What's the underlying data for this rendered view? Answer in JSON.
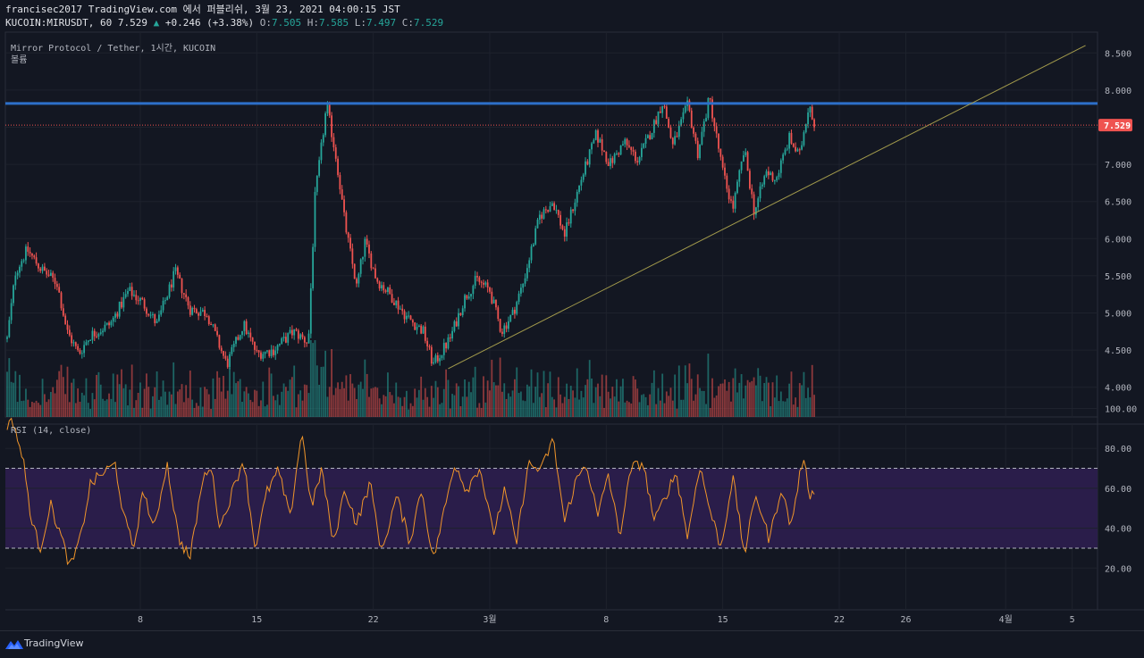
{
  "header": {
    "title_line": "francisec2017 TradingView.com 에서 퍼블리쉬, 3월 23, 2021 04:00:15 JST",
    "symbol_prefix": "KUCOIN:MIRUSDT, 60 7.529",
    "change_arrow": "▲",
    "change": "+0.246 (+3.38%)",
    "o_label": "O:",
    "o_value": "7.505",
    "h_label": "H:",
    "h_value": "7.585",
    "l_label": "L:",
    "l_value": "7.497",
    "c_label": "C:",
    "c_value": "7.529"
  },
  "legend": {
    "pair": "Mirror Protocol / Tether, 1시간, KUCOIN",
    "volume": "볼륨",
    "rsi": "RSI (14, close)"
  },
  "price_badge": "7.529",
  "footer": {
    "brand": "TradingView"
  },
  "colors": {
    "background": "#131722",
    "grid": "#1e222d",
    "up": "#26a69a",
    "down": "#ef5350",
    "resistance": "#2d6fc9",
    "trendline": "#a39b4c",
    "rsi_line": "#f0952a",
    "rsi_band": "#2a1d4a",
    "price_badge": "#ef5350"
  },
  "chart_data": [
    {
      "type": "candlestick",
      "price_axis_ticks": [
        "8.500",
        "8.000",
        "7.500",
        "7.000",
        "6.500",
        "6.000",
        "5.500",
        "5.000",
        "4.500",
        "4.000"
      ],
      "ylim": [
        3.6,
        8.78
      ],
      "time_axis_ticks": [
        {
          "label": "8",
          "day": 8
        },
        {
          "label": "15",
          "day": 15
        },
        {
          "label": "22",
          "day": 22
        },
        {
          "label": "3월",
          "day": 29
        },
        {
          "label": "8",
          "day": 36
        },
        {
          "label": "15",
          "day": 43
        },
        {
          "label": "22",
          "day": 50
        },
        {
          "label": "26",
          "day": 54
        },
        {
          "label": "4월",
          "day": 60
        },
        {
          "label": "5",
          "day": 64
        }
      ],
      "anchor_closes": [
        [
          0,
          4.65
        ],
        [
          0.5,
          5.55
        ],
        [
          1.2,
          5.85
        ],
        [
          2,
          5.6
        ],
        [
          3,
          5.4
        ],
        [
          3.6,
          4.75
        ],
        [
          4.3,
          4.45
        ],
        [
          5,
          4.7
        ],
        [
          6.2,
          4.85
        ],
        [
          7.3,
          5.3
        ],
        [
          8.1,
          5.15
        ],
        [
          9,
          4.85
        ],
        [
          10.1,
          5.55
        ],
        [
          11,
          5.05
        ],
        [
          12,
          5.0
        ],
        [
          13.2,
          4.3
        ],
        [
          14.2,
          4.85
        ],
        [
          15,
          4.45
        ],
        [
          16,
          4.5
        ],
        [
          17.2,
          4.75
        ],
        [
          18.1,
          4.6
        ],
        [
          18.5,
          6.55
        ],
        [
          19.2,
          7.8
        ],
        [
          19.8,
          7.05
        ],
        [
          20.3,
          6.2
        ],
        [
          21,
          5.35
        ],
        [
          21.5,
          5.95
        ],
        [
          22.2,
          5.45
        ],
        [
          23,
          5.25
        ],
        [
          24,
          4.95
        ],
        [
          25,
          4.75
        ],
        [
          25.6,
          4.3
        ],
        [
          26.6,
          4.65
        ],
        [
          27.5,
          5.2
        ],
        [
          28.2,
          5.45
        ],
        [
          29,
          5.3
        ],
        [
          29.7,
          4.75
        ],
        [
          30.4,
          5.0
        ],
        [
          31,
          5.4
        ],
        [
          32,
          6.3
        ],
        [
          32.8,
          6.5
        ],
        [
          33.5,
          6.05
        ],
        [
          34.5,
          6.8
        ],
        [
          35.4,
          7.4
        ],
        [
          36.2,
          7.0
        ],
        [
          37.1,
          7.3
        ],
        [
          37.9,
          7.05
        ],
        [
          38.8,
          7.5
        ],
        [
          39.4,
          7.85
        ],
        [
          40,
          7.25
        ],
        [
          40.9,
          7.8
        ],
        [
          41.5,
          7.15
        ],
        [
          42.2,
          7.9
        ],
        [
          43,
          6.9
        ],
        [
          43.6,
          6.4
        ],
        [
          44.3,
          7.2
        ],
        [
          44.9,
          6.35
        ],
        [
          45.6,
          6.9
        ],
        [
          46.2,
          6.8
        ],
        [
          47,
          7.35
        ],
        [
          47.6,
          7.1
        ],
        [
          48.2,
          7.85
        ],
        [
          48.5,
          7.53
        ]
      ],
      "rsi_anchor_values": [
        [
          0,
          92
        ],
        [
          0.4,
          93
        ],
        [
          1,
          72
        ],
        [
          1.5,
          42
        ],
        [
          2,
          30
        ],
        [
          2.6,
          52
        ],
        [
          3.2,
          37
        ],
        [
          3.8,
          20
        ],
        [
          4.4,
          35
        ],
        [
          5,
          62
        ],
        [
          5.8,
          68
        ],
        [
          6.5,
          72
        ],
        [
          7,
          46
        ],
        [
          7.6,
          30
        ],
        [
          8.2,
          60
        ],
        [
          8.8,
          38
        ],
        [
          9.6,
          73
        ],
        [
          10.3,
          35
        ],
        [
          11,
          25
        ],
        [
          11.7,
          62
        ],
        [
          12.2,
          73
        ],
        [
          12.8,
          40
        ],
        [
          13.6,
          60
        ],
        [
          14.2,
          75
        ],
        [
          14.9,
          30
        ],
        [
          15.6,
          58
        ],
        [
          16.3,
          69
        ],
        [
          17,
          45
        ],
        [
          17.7,
          89
        ],
        [
          18.3,
          50
        ],
        [
          18.9,
          70
        ],
        [
          19.6,
          32
        ],
        [
          20.3,
          60
        ],
        [
          21,
          42
        ],
        [
          21.8,
          63
        ],
        [
          22.5,
          28
        ],
        [
          23.4,
          56
        ],
        [
          24.2,
          33
        ],
        [
          24.9,
          60
        ],
        [
          25.6,
          24
        ],
        [
          26.3,
          50
        ],
        [
          26.9,
          73
        ],
        [
          27.6,
          59
        ],
        [
          28.4,
          71
        ],
        [
          29.2,
          37
        ],
        [
          29.9,
          59
        ],
        [
          30.6,
          32
        ],
        [
          31.3,
          72
        ],
        [
          32.1,
          69
        ],
        [
          32.8,
          85
        ],
        [
          33.5,
          43
        ],
        [
          34.1,
          62
        ],
        [
          34.8,
          73
        ],
        [
          35.5,
          45
        ],
        [
          36.1,
          68
        ],
        [
          36.8,
          36
        ],
        [
          37.5,
          70
        ],
        [
          38.2,
          73
        ],
        [
          38.9,
          43
        ],
        [
          39.6,
          57
        ],
        [
          40.2,
          68
        ],
        [
          40.9,
          35
        ],
        [
          41.6,
          72
        ],
        [
          42.2,
          50
        ],
        [
          42.9,
          30
        ],
        [
          43.6,
          66
        ],
        [
          44.3,
          27
        ],
        [
          45,
          57
        ],
        [
          45.8,
          34
        ],
        [
          46.5,
          60
        ],
        [
          47.1,
          41
        ],
        [
          47.8,
          75
        ],
        [
          48.3,
          55
        ],
        [
          48.5,
          59
        ]
      ],
      "rsi_axis_ticks": [
        "100.00",
        "80.00",
        "60.00",
        "40.00",
        "20.00"
      ],
      "rsi_bands": [
        30,
        70
      ],
      "last_price": 7.529,
      "resistance": 7.82,
      "trendline": [
        {
          "day": 26.5,
          "price": 4.25
        },
        {
          "day": 64.8,
          "price": 8.6
        }
      ]
    }
  ]
}
